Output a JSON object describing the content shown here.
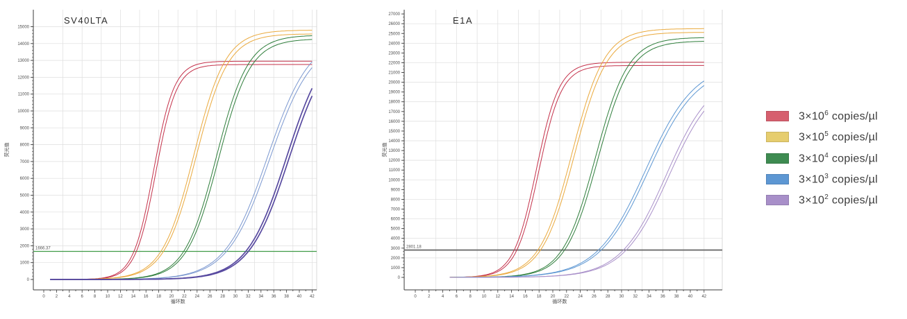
{
  "page": {
    "background": "#ffffff"
  },
  "legend": {
    "items": [
      {
        "prefix": "3×10",
        "exp": "6",
        "suffix": " copies/µl",
        "color": "#d65f6e"
      },
      {
        "prefix": "3×10",
        "exp": "5",
        "suffix": " copies/µl",
        "color": "#e6cd6e"
      },
      {
        "prefix": "3×10",
        "exp": "4",
        "suffix": " copies/µl",
        "color": "#3e8b51"
      },
      {
        "prefix": "3×10",
        "exp": "3",
        "suffix": " copies/µl",
        "color": "#5d97d3"
      },
      {
        "prefix": "3×10",
        "exp": "2",
        "suffix": " copies/µl",
        "color": "#a88fc9"
      }
    ]
  },
  "chart_data": [
    {
      "type": "line",
      "title": "SV40LTA",
      "xlabel": "循环数",
      "ylabel": "荧光值",
      "xlim": [
        0,
        43
      ],
      "ylim": [
        0,
        15000
      ],
      "x_tick_step": 2,
      "y_tick_step": 1000,
      "grid": true,
      "legend_position": "outside-right",
      "threshold": {
        "value": 1666.37,
        "label": "1666.37",
        "color": "#3f9b45",
        "width": 1.2
      },
      "series": [
        {
          "name": "3×10^6 copies/µl",
          "color": "#c43049",
          "plateau": 12950,
          "midpoint": 17.2,
          "rate": 0.62,
          "start_cycle": 1,
          "width": 1.0
        },
        {
          "name": "3×10^5 copies/µl",
          "color": "#eaa93c",
          "plateau": 14800,
          "midpoint": 23.5,
          "rate": 0.4,
          "start_cycle": 1,
          "width": 1.0
        },
        {
          "name": "3×10^4 copies/µl",
          "color": "#2d7d3a",
          "plateau": 14500,
          "midpoint": 27.0,
          "rate": 0.4,
          "start_cycle": 1,
          "width": 1.0
        },
        {
          "name": "3×10^3 copies/µl",
          "color": "#7b98d0",
          "plateau": 14500,
          "midpoint": 35.0,
          "rate": 0.3,
          "start_cycle": 1,
          "width": 1.0
        },
        {
          "name": "3×10^2 copies/µl",
          "color": "#584aa0",
          "plateau": 14500,
          "midpoint": 38.0,
          "rate": 0.32,
          "start_cycle": 1,
          "width": 1.7
        }
      ]
    },
    {
      "type": "line",
      "title": "E1A",
      "xlabel": "循环数",
      "ylabel": "荧光值",
      "xlim": [
        0,
        43
      ],
      "ylim": [
        0,
        27000
      ],
      "x_tick_step": 2,
      "y_tick_step": 1000,
      "grid": true,
      "legend_position": "outside-right",
      "threshold": {
        "value": 2801.18,
        "label": "2801.18",
        "color": "#6b6b6b",
        "width": 1.8
      },
      "series": [
        {
          "name": "3×10^6 copies/µl",
          "color": "#c43049",
          "plateau": 22050,
          "midpoint": 17.6,
          "rate": 0.6,
          "start_cycle": 5,
          "width": 1.0
        },
        {
          "name": "3×10^5 copies/µl",
          "color": "#eaa93c",
          "plateau": 25500,
          "midpoint": 22.8,
          "rate": 0.42,
          "start_cycle": 5,
          "width": 1.0
        },
        {
          "name": "3×10^4 copies/µl",
          "color": "#2d7d3a",
          "plateau": 24600,
          "midpoint": 26.2,
          "rate": 0.42,
          "start_cycle": 5,
          "width": 1.0
        },
        {
          "name": "3×10^3 copies/µl",
          "color": "#5d97d3",
          "plateau": 22000,
          "midpoint": 33.5,
          "rate": 0.28,
          "start_cycle": 5,
          "width": 1.0
        },
        {
          "name": "3×10^2 copies/µl",
          "color": "#a88fc9",
          "plateau": 21000,
          "midpoint": 36.5,
          "rate": 0.3,
          "start_cycle": 5,
          "width": 1.0
        }
      ]
    }
  ]
}
